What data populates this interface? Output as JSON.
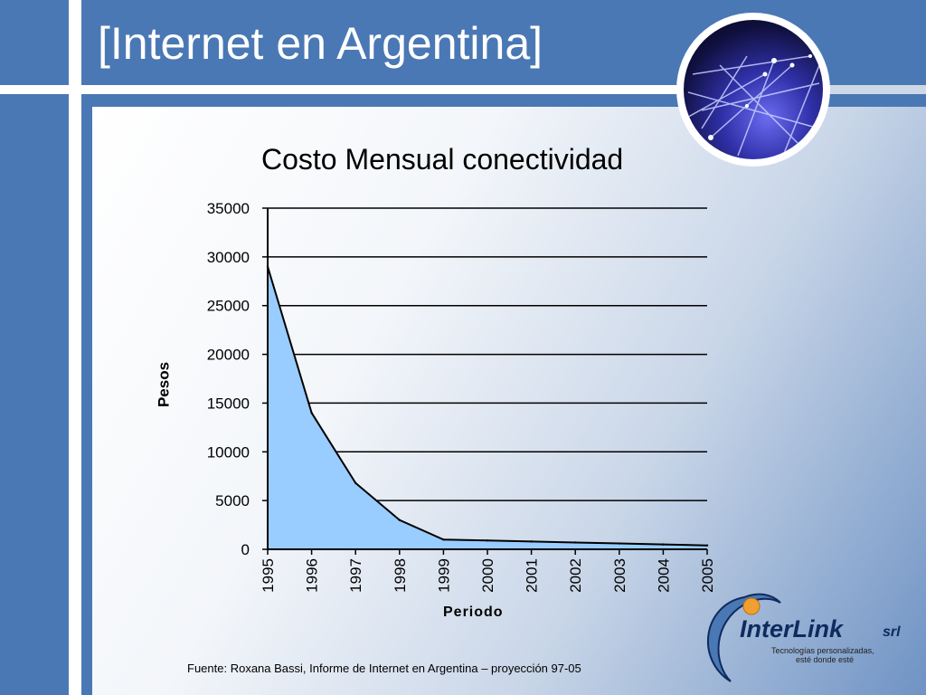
{
  "slide": {
    "title": "[Internet en Argentina]"
  },
  "source": "Fuente: Roxana Bassi, Informe de Internet en Argentina – proyección 97-05",
  "logo": {
    "name": "InterLink",
    "suffix": "srl",
    "tagline_line1": "Tecnologías personalizadas,",
    "tagline_line2": "esté donde esté"
  },
  "colors": {
    "background_blue": "#4a78b4",
    "area_fill": "#99ccff",
    "logo_text": "#0f2a5e"
  },
  "chart_data": {
    "type": "area",
    "title": "Costo Mensual conectividad",
    "xlabel": "Periodo",
    "ylabel": "Pesos",
    "x": [
      "1995",
      "1996",
      "1997",
      "1998",
      "1999",
      "2000",
      "2001",
      "2002",
      "2003",
      "2004",
      "2005"
    ],
    "values": [
      29000,
      14000,
      6800,
      3000,
      1000,
      900,
      800,
      700,
      600,
      500,
      400
    ],
    "ylim": [
      0,
      35000
    ],
    "yticks": [
      "0",
      "5000",
      "10000",
      "15000",
      "20000",
      "25000",
      "30000",
      "35000"
    ],
    "grid": true,
    "legend": "none"
  }
}
